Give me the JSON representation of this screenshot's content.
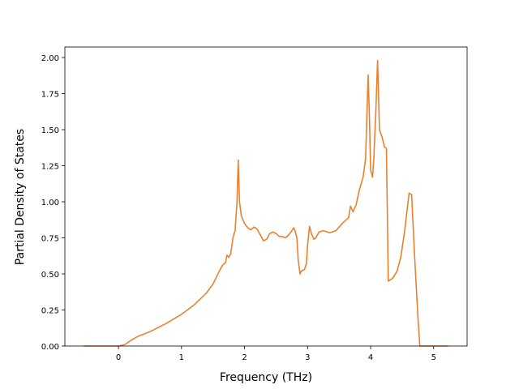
{
  "chart_data": {
    "type": "line",
    "xlabel": "Frequency (THz)",
    "ylabel": "Partial Density of States",
    "x": [
      -0.55,
      0,
      0.1,
      0.2,
      0.3,
      0.5,
      0.75,
      1.0,
      1.2,
      1.4,
      1.5,
      1.6,
      1.65,
      1.7,
      1.72,
      1.75,
      1.78,
      1.82,
      1.85,
      1.88,
      1.9,
      1.92,
      1.95,
      2.0,
      2.05,
      2.1,
      2.15,
      2.2,
      2.25,
      2.3,
      2.35,
      2.4,
      2.45,
      2.5,
      2.55,
      2.6,
      2.65,
      2.7,
      2.75,
      2.78,
      2.8,
      2.83,
      2.85,
      2.88,
      2.9,
      2.95,
      2.98,
      3.0,
      3.03,
      3.06,
      3.1,
      3.13,
      3.18,
      3.25,
      3.35,
      3.45,
      3.55,
      3.65,
      3.68,
      3.72,
      3.77,
      3.82,
      3.88,
      3.92,
      3.96,
      3.98,
      4.0,
      4.03,
      4.05,
      4.08,
      4.11,
      4.14,
      4.18,
      4.22,
      4.25,
      4.28,
      4.35,
      4.42,
      4.48,
      4.54,
      4.58,
      4.61,
      4.65,
      4.7,
      4.75,
      4.78,
      5.0,
      5.23
    ],
    "series": [
      {
        "color": "#e8822e",
        "values": [
          0,
          0,
          0.01,
          0.04,
          0.065,
          0.1,
          0.155,
          0.22,
          0.285,
          0.37,
          0.43,
          0.52,
          0.56,
          0.58,
          0.63,
          0.615,
          0.64,
          0.76,
          0.8,
          1.0,
          1.29,
          1.0,
          0.9,
          0.85,
          0.82,
          0.805,
          0.825,
          0.81,
          0.77,
          0.73,
          0.74,
          0.78,
          0.79,
          0.78,
          0.76,
          0.76,
          0.75,
          0.77,
          0.8,
          0.82,
          0.8,
          0.75,
          0.6,
          0.5,
          0.52,
          0.53,
          0.57,
          0.7,
          0.83,
          0.78,
          0.74,
          0.75,
          0.79,
          0.8,
          0.785,
          0.8,
          0.85,
          0.89,
          0.97,
          0.93,
          0.98,
          1.08,
          1.17,
          1.3,
          1.88,
          1.6,
          1.22,
          1.17,
          1.3,
          1.6,
          1.98,
          1.5,
          1.45,
          1.38,
          1.37,
          0.45,
          0.47,
          0.52,
          0.62,
          0.8,
          0.95,
          1.06,
          1.05,
          0.6,
          0.2,
          0,
          0,
          0
        ]
      }
    ],
    "xlim": [
      -0.85,
      5.53
    ],
    "ylim": [
      0,
      2.073
    ],
    "xticks": [
      0,
      1,
      2,
      3,
      4,
      5
    ],
    "yticks": [
      {
        "value": 0,
        "label": "0.00"
      },
      {
        "value": 0.25,
        "label": "0.25"
      },
      {
        "value": 0.5,
        "label": "0.50"
      },
      {
        "value": 0.75,
        "label": "0.75"
      },
      {
        "value": 1,
        "label": "1.00"
      },
      {
        "value": 1.25,
        "label": "1.25"
      },
      {
        "value": 1.5,
        "label": "1.50"
      },
      {
        "value": 1.75,
        "label": "1.75"
      },
      {
        "value": 2,
        "label": "2.00"
      }
    ]
  }
}
